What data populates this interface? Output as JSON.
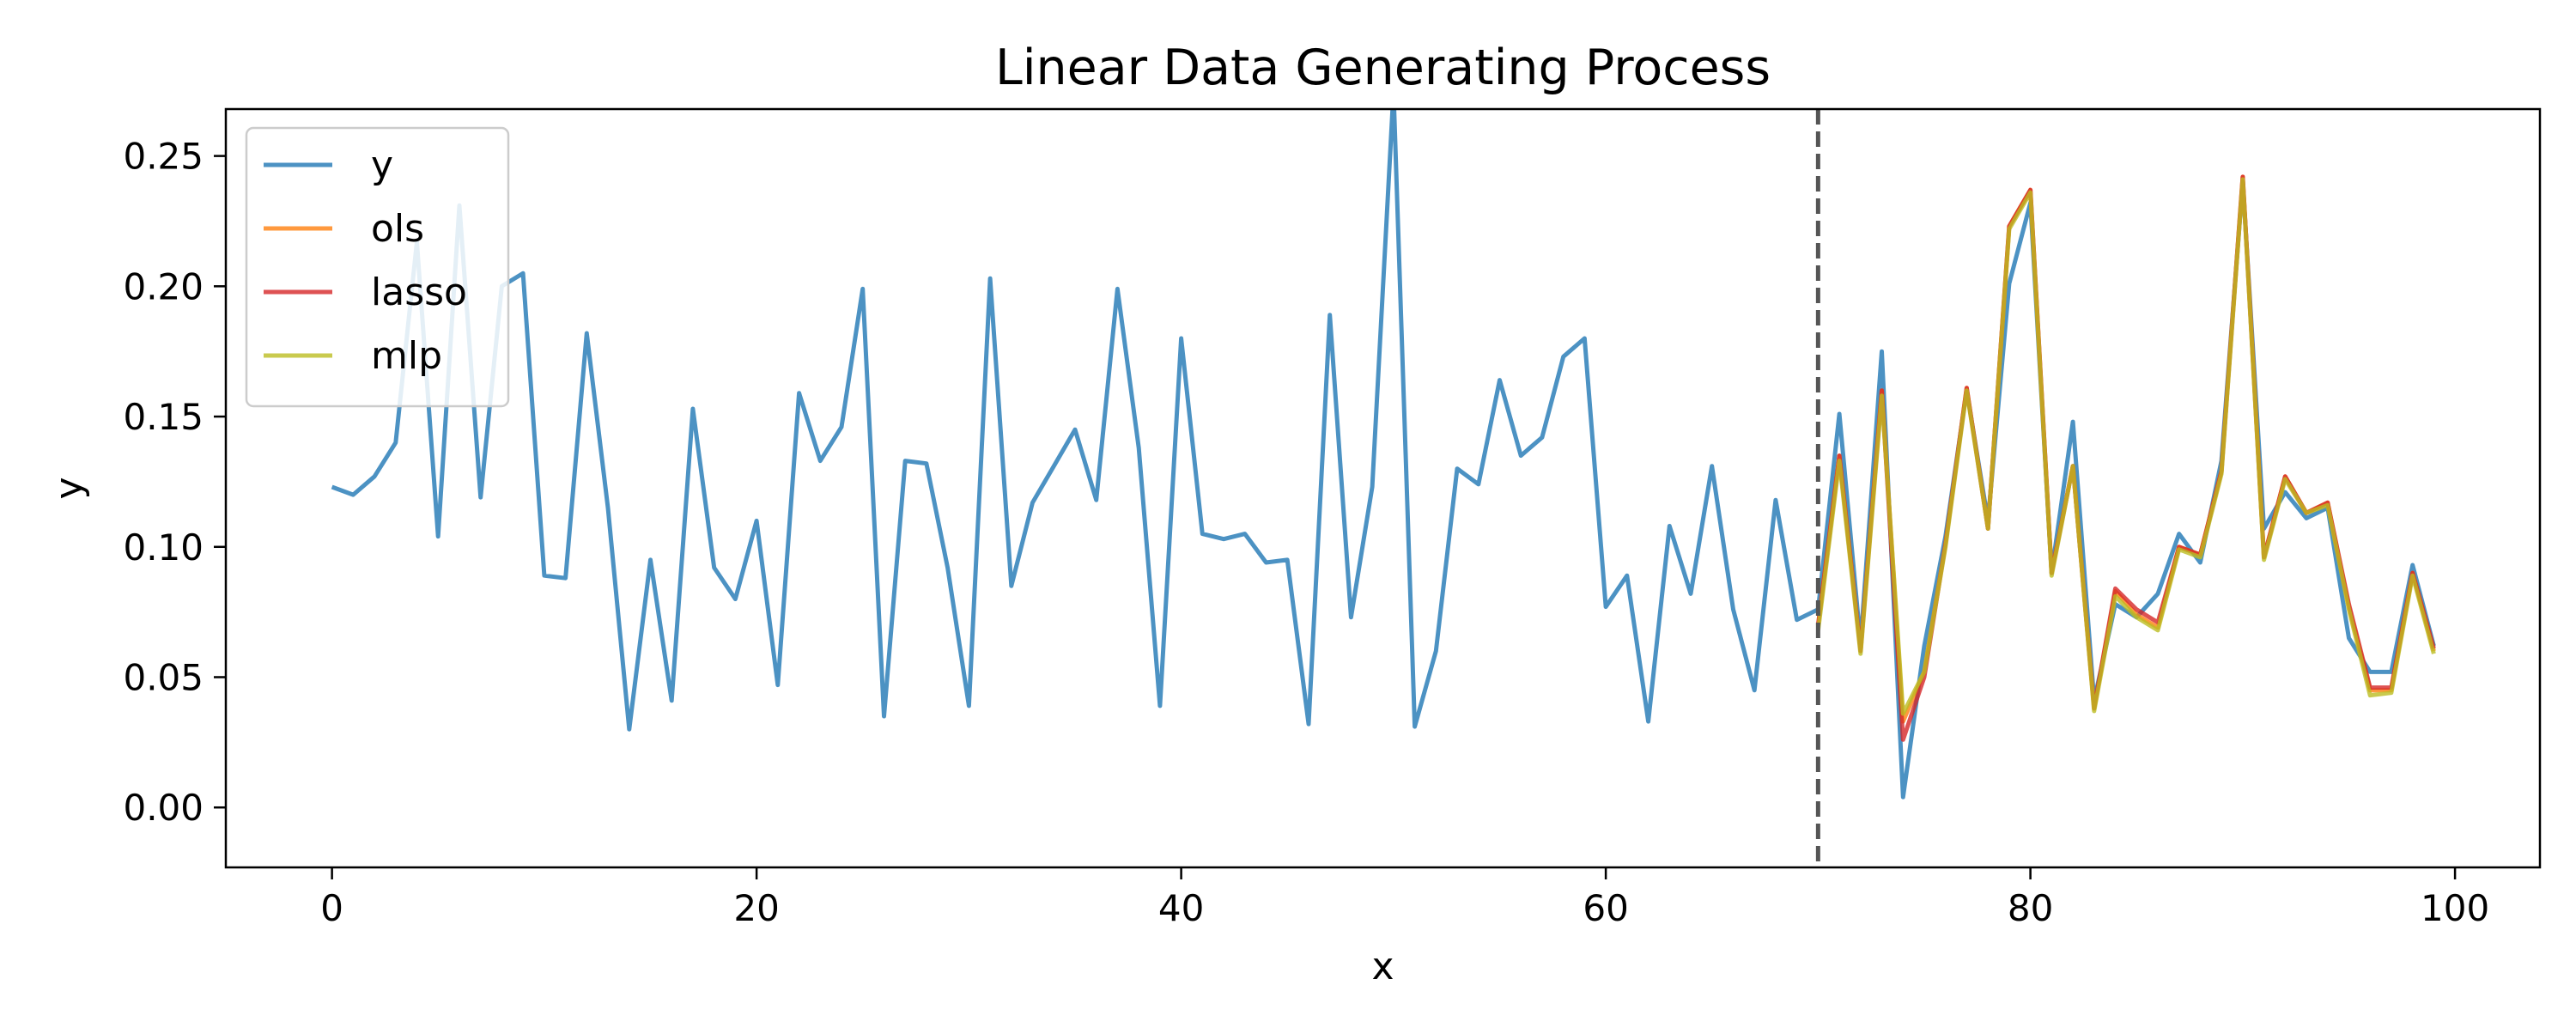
{
  "chart_data": {
    "type": "line",
    "title": "Linear Data Generating Process",
    "xlabel": "x",
    "ylabel": "y",
    "xlim": [
      -5,
      104
    ],
    "ylim": [
      -0.023,
      0.268
    ],
    "xticks": [
      0,
      20,
      40,
      60,
      80,
      100
    ],
    "xtick_labels": [
      "0",
      "20",
      "40",
      "60",
      "80",
      "100"
    ],
    "yticks": [
      0.0,
      0.05,
      0.1,
      0.15,
      0.2,
      0.25
    ],
    "ytick_labels": [
      "0.00",
      "0.05",
      "0.10",
      "0.15",
      "0.20",
      "0.25"
    ],
    "grid": false,
    "legend_position": "top-left",
    "vline": {
      "x": 70,
      "style": "dashed",
      "color": "#555555"
    },
    "series": [
      {
        "name": "y",
        "color": "#1f77b4",
        "x": [
          0,
          1,
          2,
          3,
          4,
          5,
          6,
          7,
          8,
          9,
          10,
          11,
          12,
          13,
          14,
          15,
          16,
          17,
          18,
          19,
          20,
          21,
          22,
          23,
          24,
          25,
          26,
          27,
          28,
          29,
          30,
          31,
          32,
          33,
          34,
          35,
          36,
          37,
          38,
          39,
          40,
          41,
          42,
          43,
          44,
          45,
          46,
          47,
          48,
          49,
          50,
          51,
          52,
          53,
          54,
          55,
          56,
          57,
          58,
          59,
          60,
          61,
          62,
          63,
          64,
          65,
          66,
          67,
          68,
          69,
          70,
          71,
          72,
          73,
          74,
          75,
          76,
          77,
          78,
          79,
          80,
          81,
          82,
          83,
          84,
          85,
          86,
          87,
          88,
          89,
          90,
          91,
          92,
          93,
          94,
          95,
          96,
          97,
          98,
          99
        ],
        "values": [
          0.123,
          0.12,
          0.127,
          0.14,
          0.217,
          0.104,
          0.231,
          0.119,
          0.2,
          0.205,
          0.089,
          0.088,
          0.182,
          0.115,
          0.03,
          0.095,
          0.041,
          0.153,
          0.092,
          0.08,
          0.11,
          0.047,
          0.159,
          0.133,
          0.146,
          0.199,
          0.035,
          0.133,
          0.132,
          0.092,
          0.039,
          0.203,
          0.085,
          0.117,
          0.131,
          0.145,
          0.118,
          0.199,
          0.138,
          0.039,
          0.18,
          0.105,
          0.103,
          0.105,
          0.094,
          0.095,
          0.032,
          0.189,
          0.073,
          0.123,
          0.275,
          0.031,
          0.06,
          0.13,
          0.124,
          0.164,
          0.135,
          0.142,
          0.173,
          0.18,
          0.077,
          0.089,
          0.033,
          0.108,
          0.082,
          0.131,
          0.076,
          0.045,
          0.118,
          0.072,
          0.076,
          0.151,
          0.063,
          0.175,
          0.004,
          0.062,
          0.104,
          0.16,
          0.11,
          0.201,
          0.232,
          0.09,
          0.148,
          0.041,
          0.078,
          0.073,
          0.082,
          0.105,
          0.094,
          0.133,
          0.24,
          0.107,
          0.121,
          0.111,
          0.115,
          0.065,
          0.052,
          0.052,
          0.093,
          0.062
        ]
      },
      {
        "name": "ols",
        "color": "#ff7f0e",
        "x": [
          70,
          71,
          72,
          73,
          74,
          75,
          76,
          77,
          78,
          79,
          80,
          81,
          82,
          83,
          84,
          85,
          86,
          87,
          88,
          89,
          90,
          91,
          92,
          93,
          94,
          95,
          96,
          97,
          98,
          99
        ],
        "values": [
          0.07,
          0.135,
          0.06,
          0.16,
          0.033,
          0.052,
          0.101,
          0.161,
          0.107,
          0.223,
          0.237,
          0.09,
          0.131,
          0.038,
          0.083,
          0.074,
          0.069,
          0.1,
          0.097,
          0.129,
          0.242,
          0.096,
          0.127,
          0.113,
          0.117,
          0.077,
          0.045,
          0.045,
          0.09,
          0.06
        ]
      },
      {
        "name": "lasso",
        "color": "#d62728",
        "x": [
          70,
          71,
          72,
          73,
          74,
          75,
          76,
          77,
          78,
          79,
          80,
          81,
          82,
          83,
          84,
          85,
          86,
          87,
          88,
          89,
          90,
          91,
          92,
          93,
          94,
          95,
          96,
          97,
          98,
          99
        ],
        "values": [
          0.07,
          0.135,
          0.06,
          0.16,
          0.026,
          0.05,
          0.101,
          0.161,
          0.107,
          0.223,
          0.237,
          0.09,
          0.131,
          0.038,
          0.084,
          0.076,
          0.071,
          0.1,
          0.097,
          0.129,
          0.242,
          0.096,
          0.127,
          0.113,
          0.117,
          0.078,
          0.046,
          0.046,
          0.09,
          0.061
        ]
      },
      {
        "name": "mlp",
        "color": "#bcbd22",
        "x": [
          70,
          71,
          72,
          73,
          74,
          75,
          76,
          77,
          78,
          79,
          80,
          81,
          82,
          83,
          84,
          85,
          86,
          87,
          88,
          89,
          90,
          91,
          92,
          93,
          94,
          95,
          96,
          97,
          98,
          99
        ],
        "values": [
          0.068,
          0.133,
          0.059,
          0.158,
          0.036,
          0.052,
          0.1,
          0.16,
          0.107,
          0.222,
          0.236,
          0.089,
          0.131,
          0.037,
          0.081,
          0.073,
          0.068,
          0.099,
          0.096,
          0.128,
          0.241,
          0.095,
          0.126,
          0.113,
          0.116,
          0.076,
          0.043,
          0.044,
          0.089,
          0.059
        ]
      }
    ]
  }
}
